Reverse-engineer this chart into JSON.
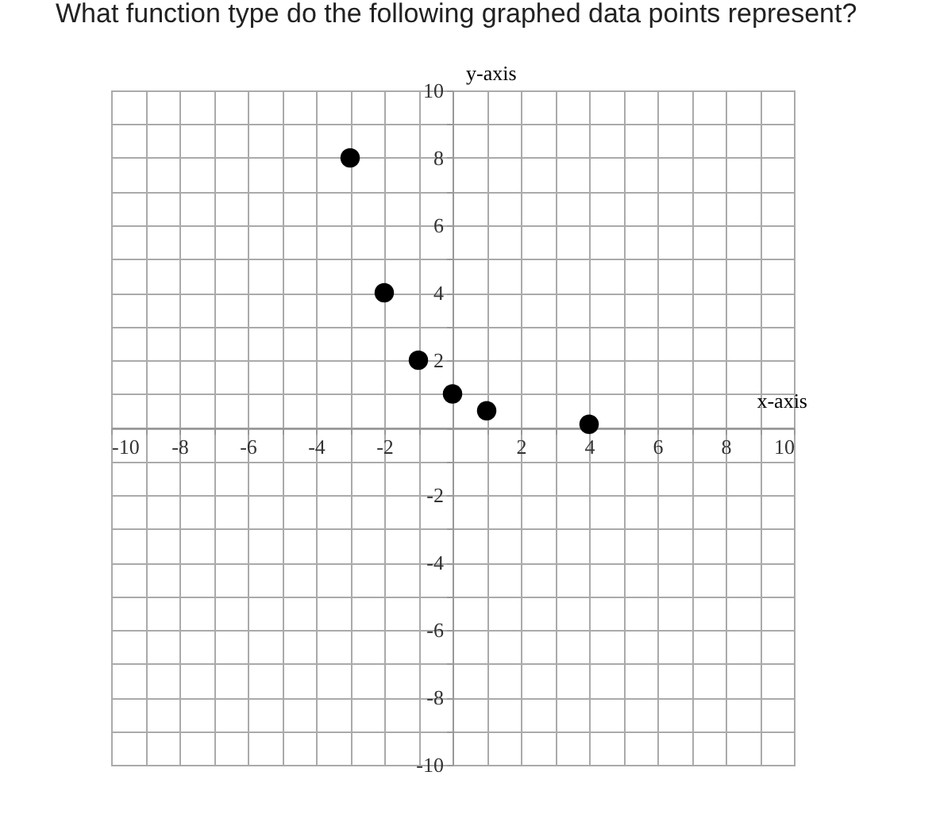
{
  "chart_data": {
    "type": "scatter",
    "title": "What function type do the following graphed data points represent?",
    "xlabel": "x-axis",
    "ylabel": "y-axis",
    "x": [
      -3,
      -2,
      -1,
      0,
      1,
      4
    ],
    "series": [
      {
        "color": "#000000",
        "values": [
          8,
          4,
          2,
          1,
          0.5,
          0.1
        ]
      }
    ],
    "marker": "circle",
    "grid": true,
    "xlim": [
      -10,
      10
    ],
    "ylim": [
      -10,
      10
    ],
    "xticks": [
      -10,
      {
        "value": -9,
        "label": null
      },
      -8,
      {
        "value": -7,
        "label": null
      },
      -6,
      {
        "value": -5,
        "label": null
      },
      -4,
      {
        "value": -3,
        "label": null
      },
      -2,
      {
        "value": -1,
        "label": null
      },
      {
        "value": 0,
        "label": null
      },
      {
        "value": 1,
        "label": null
      },
      2,
      {
        "value": 3,
        "label": null
      },
      4,
      {
        "value": 5,
        "label": null
      },
      6,
      {
        "value": 7,
        "label": null
      },
      8,
      {
        "value": 9,
        "label": null
      },
      10
    ],
    "yticks": [
      -10,
      {
        "value": -9,
        "label": null
      },
      -8,
      {
        "value": -7,
        "label": null
      },
      -6,
      {
        "value": -5,
        "label": null
      },
      -4,
      {
        "value": -3,
        "label": null
      },
      -2,
      {
        "value": -1,
        "label": null
      },
      {
        "value": 0,
        "label": null
      },
      {
        "value": 1,
        "label": null
      },
      2,
      {
        "value": 3,
        "label": null
      },
      4,
      {
        "value": 5,
        "label": null
      },
      6,
      {
        "value": 7,
        "label": null
      },
      8,
      {
        "value": 9,
        "label": null
      },
      10
    ]
  }
}
